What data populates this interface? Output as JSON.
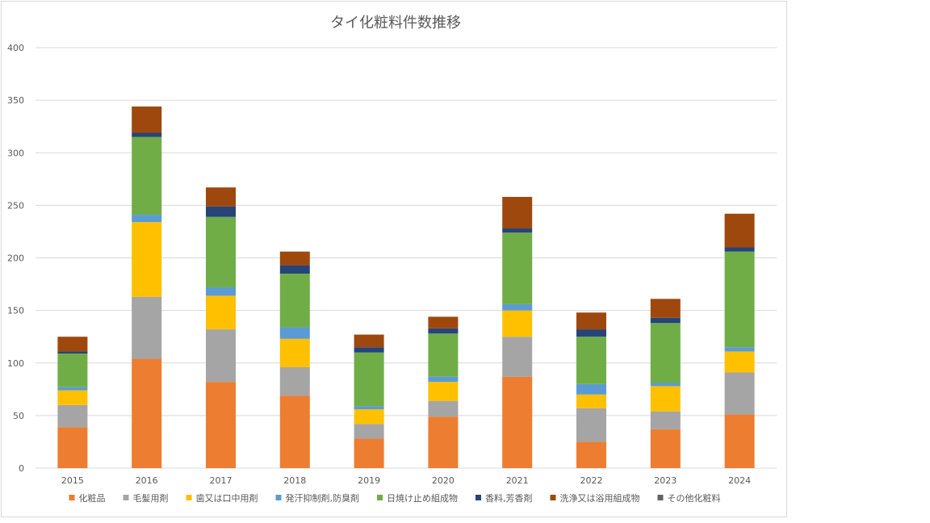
{
  "chart_data": {
    "type": "bar",
    "stacked": true,
    "title": "タイ化粧料件数推移",
    "xlabel": "",
    "ylabel": "",
    "ylim": [
      0,
      400
    ],
    "yticks": [
      0,
      50,
      100,
      150,
      200,
      250,
      300,
      350,
      400
    ],
    "grid": true,
    "legend_position": "bottom",
    "categories": [
      "2015",
      "2016",
      "2017",
      "2018",
      "2019",
      "2020",
      "2021",
      "2022",
      "2023",
      "2024"
    ],
    "series": [
      {
        "name": "化粧品",
        "color": "#ED7D31",
        "values": [
          39,
          104,
          82,
          69,
          28,
          49,
          87,
          25,
          37,
          51
        ]
      },
      {
        "name": "毛髪用剤",
        "color": "#A5A5A5",
        "values": [
          21,
          59,
          50,
          27,
          14,
          15,
          38,
          32,
          17,
          40
        ]
      },
      {
        "name": "歯又は口中用剤",
        "color": "#FFC000",
        "values": [
          14,
          71,
          32,
          27,
          14,
          18,
          25,
          13,
          24,
          20
        ]
      },
      {
        "name": "発汗抑制剤,防臭剤",
        "color": "#5B9BD5",
        "values": [
          3,
          7,
          8,
          11,
          3,
          5,
          6,
          10,
          3,
          4
        ]
      },
      {
        "name": "日焼け止め組成物",
        "color": "#70AD47",
        "values": [
          32,
          74,
          67,
          51,
          51,
          41,
          68,
          45,
          57,
          91
        ]
      },
      {
        "name": "香料,芳香剤",
        "color": "#264478",
        "values": [
          2,
          4,
          10,
          8,
          5,
          5,
          4,
          7,
          5,
          4
        ]
      },
      {
        "name": "洗浄又は浴用組成物",
        "color": "#9E480E",
        "values": [
          14,
          25,
          18,
          13,
          12,
          11,
          30,
          16,
          18,
          32
        ]
      },
      {
        "name": "その他化粧料",
        "color": "#636363",
        "values": [
          0,
          0,
          0,
          0,
          0,
          0,
          0,
          0,
          0,
          0
        ]
      }
    ]
  }
}
